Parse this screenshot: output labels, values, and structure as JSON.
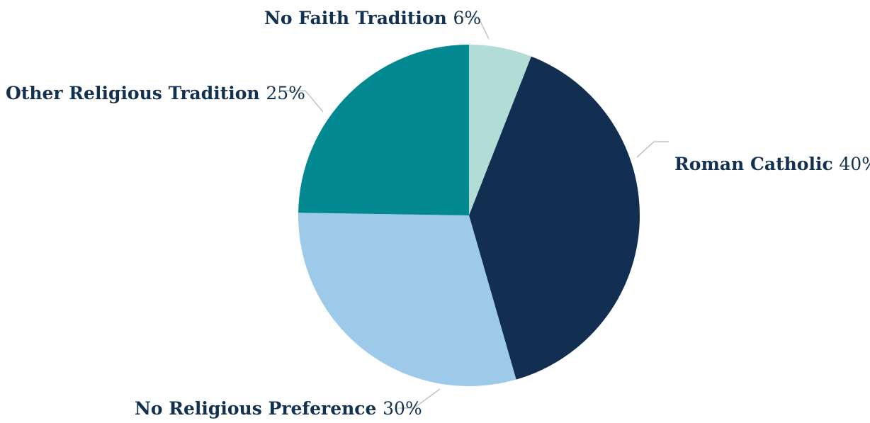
{
  "chart_data": {
    "type": "pie",
    "slices": [
      {
        "label": "No Faith Tradition",
        "value": 6,
        "value_label": "6%",
        "color": "#b2ddd7"
      },
      {
        "label": "Roman Catholic",
        "value": 40,
        "value_label": "40%",
        "color": "#122f51"
      },
      {
        "label": "No Religious Preference",
        "value": 30,
        "value_label": "30%",
        "color": "#9ecae9"
      },
      {
        "label": "Other Religious Tradition",
        "value": 25,
        "value_label": "25%",
        "color": "#028891"
      }
    ],
    "start_angle": "12 o'clock",
    "direction": "clockwise",
    "legend": "none",
    "labels": "outside with leader lines"
  }
}
